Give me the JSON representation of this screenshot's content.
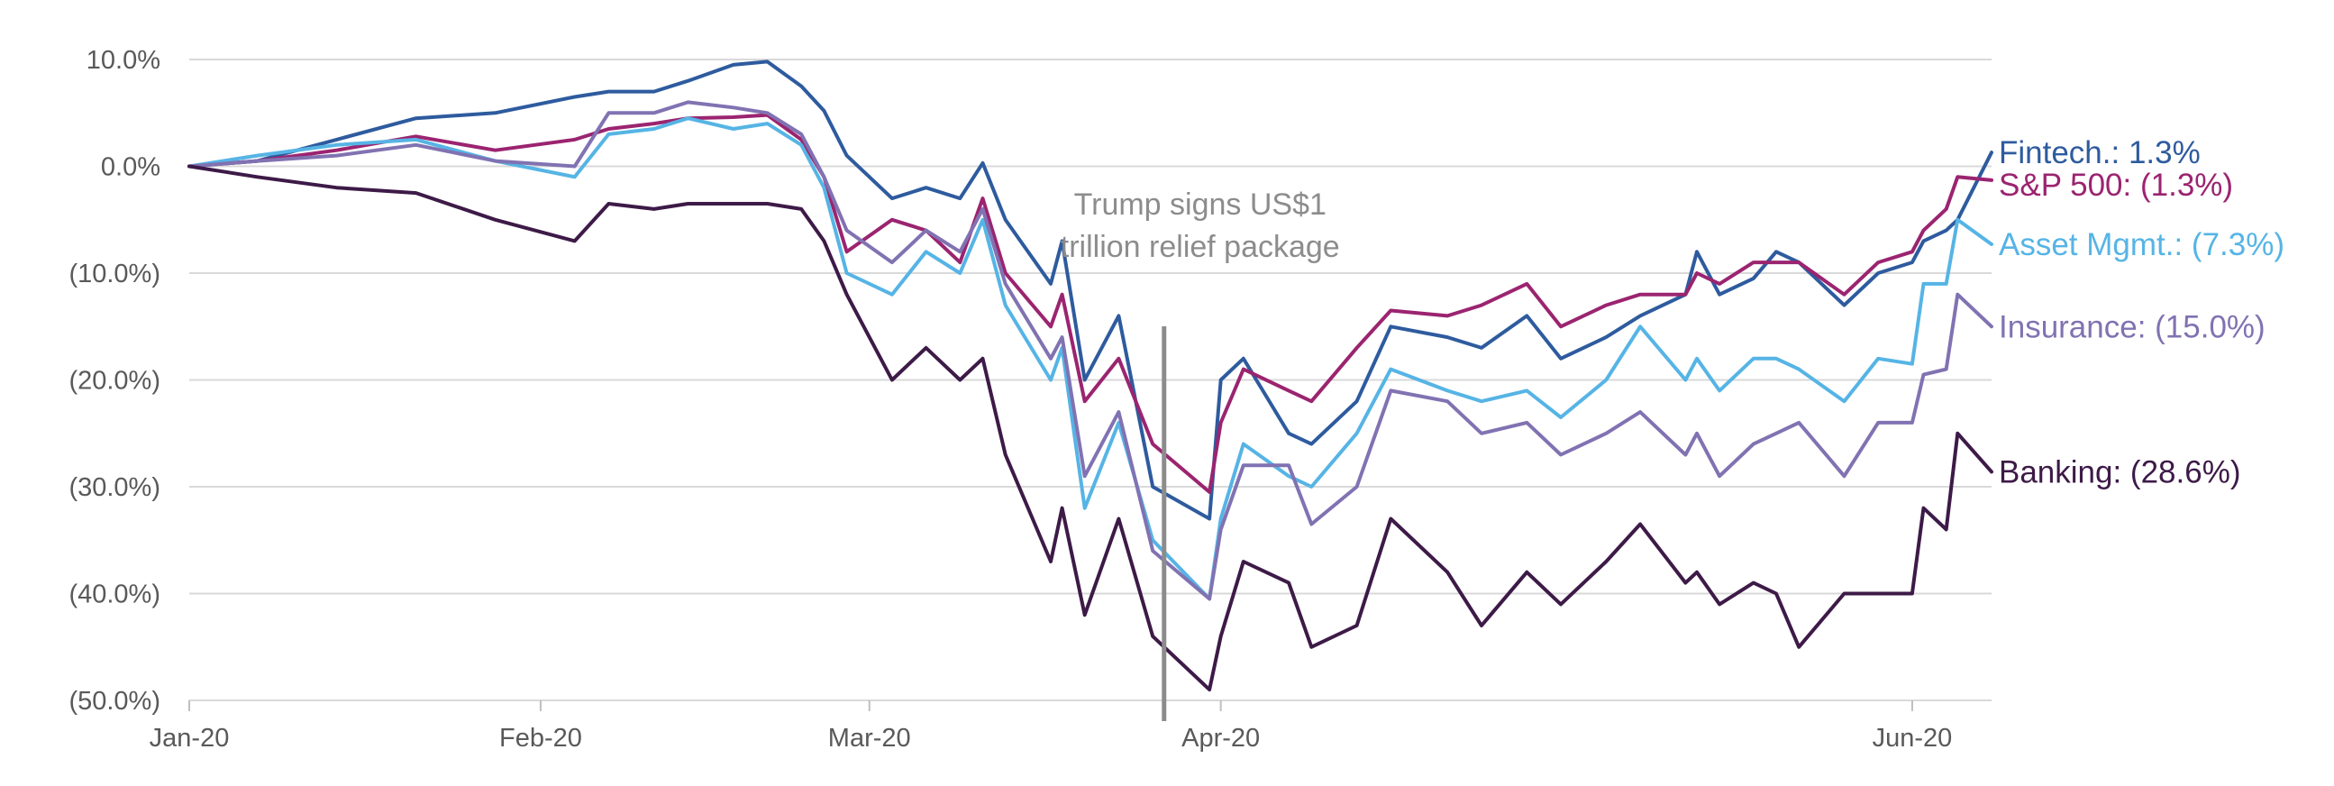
{
  "chart_data": {
    "type": "line",
    "title": "",
    "xlabel": "",
    "ylabel": "",
    "ylim": [
      -50,
      10
    ],
    "y_ticks": [
      "10.0%",
      "0.0%",
      "(10.0%)",
      "(20.0%)",
      "(30.0%)",
      "(40.0%)",
      "(50.0%)"
    ],
    "x_ticks": [
      "Jan-20",
      "Feb-20",
      "Mar-20",
      "Apr-20",
      "Jun-20"
    ],
    "x_tick_dates": [
      "2020-01-01",
      "2020-02-01",
      "2020-03-01",
      "2020-04-01",
      "2020-06-01"
    ],
    "x_range": [
      "2020-01-01",
      "2020-06-08"
    ],
    "grid": "horizontal",
    "legend": "series labels at right end of lines",
    "annotation": {
      "lines": [
        "Trump signs US$1",
        "trillion relief package"
      ],
      "date": "2020-03-27"
    },
    "series": [
      {
        "label": "Fintech.: 1.3%",
        "color": "#2e5b9e",
        "points": [
          [
            "2020-01-01",
            0
          ],
          [
            "2020-01-07",
            0.5
          ],
          [
            "2020-01-14",
            2.5
          ],
          [
            "2020-01-21",
            4.5
          ],
          [
            "2020-01-28",
            5
          ],
          [
            "2020-02-04",
            6.5
          ],
          [
            "2020-02-07",
            7
          ],
          [
            "2020-02-11",
            7
          ],
          [
            "2020-02-14",
            8
          ],
          [
            "2020-02-18",
            9.5
          ],
          [
            "2020-02-21",
            9.8
          ],
          [
            "2020-02-24",
            7.5
          ],
          [
            "2020-02-26",
            5.2
          ],
          [
            "2020-02-28",
            1
          ],
          [
            "2020-03-03",
            -3
          ],
          [
            "2020-03-06",
            -2
          ],
          [
            "2020-03-09",
            -3
          ],
          [
            "2020-03-11",
            0.3
          ],
          [
            "2020-03-13",
            -5
          ],
          [
            "2020-03-17",
            -11
          ],
          [
            "2020-03-18",
            -7
          ],
          [
            "2020-03-20",
            -20
          ],
          [
            "2020-03-23",
            -14
          ],
          [
            "2020-03-26",
            -30
          ],
          [
            "2020-03-31",
            -33
          ],
          [
            "2020-04-01",
            -20
          ],
          [
            "2020-04-03",
            -18
          ],
          [
            "2020-04-07",
            -25
          ],
          [
            "2020-04-09",
            -26
          ],
          [
            "2020-04-13",
            -22
          ],
          [
            "2020-04-16",
            -15
          ],
          [
            "2020-04-21",
            -16
          ],
          [
            "2020-04-24",
            -17
          ],
          [
            "2020-04-28",
            -14
          ],
          [
            "2020-05-01",
            -18
          ],
          [
            "2020-05-05",
            -16
          ],
          [
            "2020-05-08",
            -14
          ],
          [
            "2020-05-12",
            -12
          ],
          [
            "2020-05-13",
            -8
          ],
          [
            "2020-05-15",
            -12
          ],
          [
            "2020-05-18",
            -10.5
          ],
          [
            "2020-05-20",
            -8
          ],
          [
            "2020-05-22",
            -9
          ],
          [
            "2020-05-26",
            -13
          ],
          [
            "2020-05-29",
            -10
          ],
          [
            "2020-06-01",
            -9
          ],
          [
            "2020-06-02",
            -7
          ],
          [
            "2020-06-04",
            -6
          ],
          [
            "2020-06-05",
            -5
          ],
          [
            "2020-06-08",
            1.3
          ]
        ]
      },
      {
        "label": "S&P 500: (1.3%)",
        "color": "#9b2470",
        "points": [
          [
            "2020-01-01",
            0
          ],
          [
            "2020-01-07",
            0.5
          ],
          [
            "2020-01-14",
            1.5
          ],
          [
            "2020-01-21",
            2.8
          ],
          [
            "2020-01-28",
            1.5
          ],
          [
            "2020-02-04",
            2.5
          ],
          [
            "2020-02-07",
            3.5
          ],
          [
            "2020-02-11",
            4
          ],
          [
            "2020-02-14",
            4.5
          ],
          [
            "2020-02-18",
            4.6
          ],
          [
            "2020-02-21",
            4.8
          ],
          [
            "2020-02-24",
            2.5
          ],
          [
            "2020-02-26",
            -1
          ],
          [
            "2020-02-28",
            -8
          ],
          [
            "2020-03-03",
            -5
          ],
          [
            "2020-03-06",
            -6
          ],
          [
            "2020-03-09",
            -9
          ],
          [
            "2020-03-11",
            -3
          ],
          [
            "2020-03-13",
            -10
          ],
          [
            "2020-03-17",
            -15
          ],
          [
            "2020-03-18",
            -12
          ],
          [
            "2020-03-20",
            -22
          ],
          [
            "2020-03-23",
            -18
          ],
          [
            "2020-03-26",
            -26
          ],
          [
            "2020-03-31",
            -30.5
          ],
          [
            "2020-04-01",
            -24
          ],
          [
            "2020-04-03",
            -19
          ],
          [
            "2020-04-07",
            -21
          ],
          [
            "2020-04-09",
            -22
          ],
          [
            "2020-04-13",
            -17
          ],
          [
            "2020-04-16",
            -13.5
          ],
          [
            "2020-04-21",
            -14
          ],
          [
            "2020-04-24",
            -13
          ],
          [
            "2020-04-28",
            -11
          ],
          [
            "2020-05-01",
            -15
          ],
          [
            "2020-05-05",
            -13
          ],
          [
            "2020-05-08",
            -12
          ],
          [
            "2020-05-12",
            -12
          ],
          [
            "2020-05-13",
            -10
          ],
          [
            "2020-05-15",
            -11
          ],
          [
            "2020-05-18",
            -9
          ],
          [
            "2020-05-20",
            -9
          ],
          [
            "2020-05-22",
            -9
          ],
          [
            "2020-05-26",
            -12
          ],
          [
            "2020-05-29",
            -9
          ],
          [
            "2020-06-01",
            -8
          ],
          [
            "2020-06-02",
            -6
          ],
          [
            "2020-06-04",
            -4
          ],
          [
            "2020-06-05",
            -1
          ],
          [
            "2020-06-08",
            -1.3
          ]
        ]
      },
      {
        "label": "Asset Mgmt.: (7.3%)",
        "color": "#56b4e5",
        "points": [
          [
            "2020-01-01",
            0
          ],
          [
            "2020-01-07",
            1
          ],
          [
            "2020-01-14",
            2
          ],
          [
            "2020-01-21",
            2.5
          ],
          [
            "2020-01-28",
            0.5
          ],
          [
            "2020-02-04",
            -1
          ],
          [
            "2020-02-07",
            3
          ],
          [
            "2020-02-11",
            3.5
          ],
          [
            "2020-02-14",
            4.5
          ],
          [
            "2020-02-18",
            3.5
          ],
          [
            "2020-02-21",
            4
          ],
          [
            "2020-02-24",
            2
          ],
          [
            "2020-02-26",
            -2
          ],
          [
            "2020-02-28",
            -10
          ],
          [
            "2020-03-03",
            -12
          ],
          [
            "2020-03-06",
            -8
          ],
          [
            "2020-03-09",
            -10
          ],
          [
            "2020-03-11",
            -5
          ],
          [
            "2020-03-13",
            -13
          ],
          [
            "2020-03-17",
            -20
          ],
          [
            "2020-03-18",
            -17
          ],
          [
            "2020-03-20",
            -32
          ],
          [
            "2020-03-23",
            -24
          ],
          [
            "2020-03-26",
            -35
          ],
          [
            "2020-03-31",
            -40.5
          ],
          [
            "2020-04-01",
            -33
          ],
          [
            "2020-04-03",
            -26
          ],
          [
            "2020-04-07",
            -29
          ],
          [
            "2020-04-09",
            -30
          ],
          [
            "2020-04-13",
            -25
          ],
          [
            "2020-04-16",
            -19
          ],
          [
            "2020-04-21",
            -21
          ],
          [
            "2020-04-24",
            -22
          ],
          [
            "2020-04-28",
            -21
          ],
          [
            "2020-05-01",
            -23.5
          ],
          [
            "2020-05-05",
            -20
          ],
          [
            "2020-05-08",
            -15
          ],
          [
            "2020-05-12",
            -20
          ],
          [
            "2020-05-13",
            -18
          ],
          [
            "2020-05-15",
            -21
          ],
          [
            "2020-05-18",
            -18
          ],
          [
            "2020-05-20",
            -18
          ],
          [
            "2020-05-22",
            -19
          ],
          [
            "2020-05-26",
            -22
          ],
          [
            "2020-05-29",
            -18
          ],
          [
            "2020-06-01",
            -18.5
          ],
          [
            "2020-06-02",
            -11
          ],
          [
            "2020-06-04",
            -11
          ],
          [
            "2020-06-05",
            -5
          ],
          [
            "2020-06-08",
            -7.3
          ]
        ]
      },
      {
        "label": "Insurance: (15.0%)",
        "color": "#8172b2",
        "points": [
          [
            "2020-01-01",
            0
          ],
          [
            "2020-01-07",
            0.5
          ],
          [
            "2020-01-14",
            1
          ],
          [
            "2020-01-21",
            2
          ],
          [
            "2020-01-28",
            0.5
          ],
          [
            "2020-02-04",
            0
          ],
          [
            "2020-02-07",
            5
          ],
          [
            "2020-02-11",
            5
          ],
          [
            "2020-02-14",
            6
          ],
          [
            "2020-02-18",
            5.5
          ],
          [
            "2020-02-21",
            5
          ],
          [
            "2020-02-24",
            3
          ],
          [
            "2020-02-26",
            -1
          ],
          [
            "2020-02-28",
            -6
          ],
          [
            "2020-03-03",
            -9
          ],
          [
            "2020-03-06",
            -6
          ],
          [
            "2020-03-09",
            -8
          ],
          [
            "2020-03-11",
            -4
          ],
          [
            "2020-03-13",
            -11
          ],
          [
            "2020-03-17",
            -18
          ],
          [
            "2020-03-18",
            -16
          ],
          [
            "2020-03-20",
            -29
          ],
          [
            "2020-03-23",
            -23
          ],
          [
            "2020-03-26",
            -36
          ],
          [
            "2020-03-31",
            -40.5
          ],
          [
            "2020-04-01",
            -34
          ],
          [
            "2020-04-03",
            -28
          ],
          [
            "2020-04-07",
            -28
          ],
          [
            "2020-04-09",
            -33.5
          ],
          [
            "2020-04-13",
            -30
          ],
          [
            "2020-04-16",
            -21
          ],
          [
            "2020-04-21",
            -22
          ],
          [
            "2020-04-24",
            -25
          ],
          [
            "2020-04-28",
            -24
          ],
          [
            "2020-05-01",
            -27
          ],
          [
            "2020-05-05",
            -25
          ],
          [
            "2020-05-08",
            -23
          ],
          [
            "2020-05-12",
            -27
          ],
          [
            "2020-05-13",
            -25
          ],
          [
            "2020-05-15",
            -29
          ],
          [
            "2020-05-18",
            -26
          ],
          [
            "2020-05-20",
            -25
          ],
          [
            "2020-05-22",
            -24
          ],
          [
            "2020-05-26",
            -29
          ],
          [
            "2020-05-29",
            -24
          ],
          [
            "2020-06-01",
            -24
          ],
          [
            "2020-06-02",
            -19.5
          ],
          [
            "2020-06-04",
            -19
          ],
          [
            "2020-06-05",
            -12
          ],
          [
            "2020-06-08",
            -15.0
          ]
        ]
      },
      {
        "label": "Banking: (28.6%)",
        "color": "#3d1a47",
        "points": [
          [
            "2020-01-01",
            0
          ],
          [
            "2020-01-07",
            -1
          ],
          [
            "2020-01-14",
            -2
          ],
          [
            "2020-01-21",
            -2.5
          ],
          [
            "2020-01-28",
            -5
          ],
          [
            "2020-02-04",
            -7
          ],
          [
            "2020-02-07",
            -3.5
          ],
          [
            "2020-02-11",
            -4
          ],
          [
            "2020-02-14",
            -3.5
          ],
          [
            "2020-02-18",
            -3.5
          ],
          [
            "2020-02-21",
            -3.5
          ],
          [
            "2020-02-24",
            -4
          ],
          [
            "2020-02-26",
            -7
          ],
          [
            "2020-02-28",
            -12
          ],
          [
            "2020-03-03",
            -20
          ],
          [
            "2020-03-06",
            -17
          ],
          [
            "2020-03-09",
            -20
          ],
          [
            "2020-03-11",
            -18
          ],
          [
            "2020-03-13",
            -27
          ],
          [
            "2020-03-17",
            -37
          ],
          [
            "2020-03-18",
            -32
          ],
          [
            "2020-03-20",
            -42
          ],
          [
            "2020-03-23",
            -33
          ],
          [
            "2020-03-26",
            -44
          ],
          [
            "2020-03-31",
            -49
          ],
          [
            "2020-04-01",
            -44
          ],
          [
            "2020-04-03",
            -37
          ],
          [
            "2020-04-07",
            -39
          ],
          [
            "2020-04-09",
            -45
          ],
          [
            "2020-04-13",
            -43
          ],
          [
            "2020-04-16",
            -33
          ],
          [
            "2020-04-21",
            -38
          ],
          [
            "2020-04-24",
            -43
          ],
          [
            "2020-04-28",
            -38
          ],
          [
            "2020-05-01",
            -41
          ],
          [
            "2020-05-05",
            -37
          ],
          [
            "2020-05-08",
            -33.5
          ],
          [
            "2020-05-12",
            -39
          ],
          [
            "2020-05-13",
            -38
          ],
          [
            "2020-05-15",
            -41
          ],
          [
            "2020-05-18",
            -39
          ],
          [
            "2020-05-20",
            -40
          ],
          [
            "2020-05-22",
            -45
          ],
          [
            "2020-05-26",
            -40
          ],
          [
            "2020-05-29",
            -40
          ],
          [
            "2020-06-01",
            -40
          ],
          [
            "2020-06-02",
            -32
          ],
          [
            "2020-06-04",
            -34
          ],
          [
            "2020-06-05",
            -25
          ],
          [
            "2020-06-08",
            -28.6
          ]
        ]
      }
    ]
  }
}
